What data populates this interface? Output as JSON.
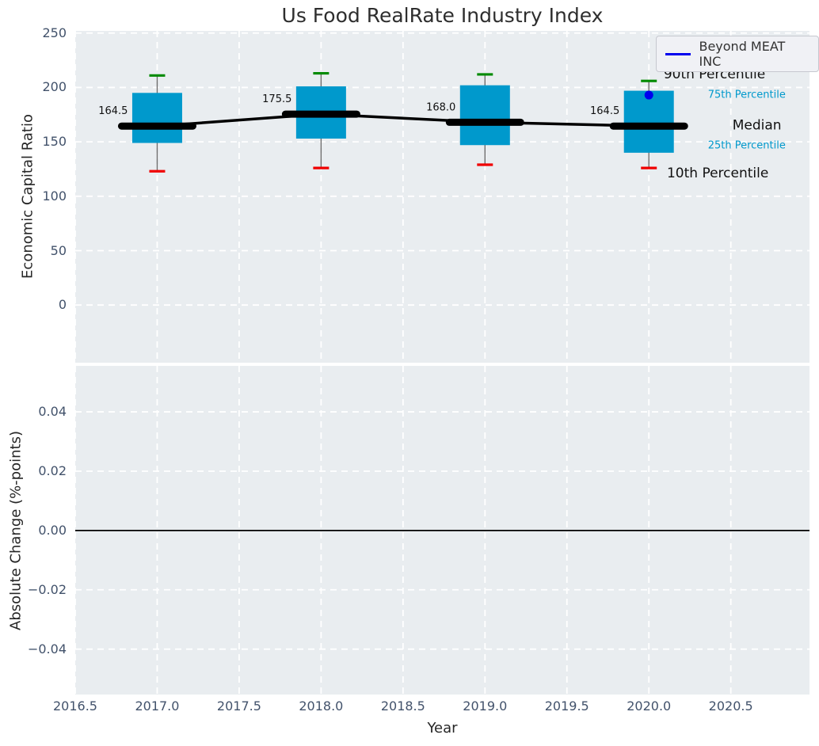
{
  "colors": {
    "axes_bg": "#e9edf0",
    "grid": "#ffffff",
    "box": "#0099cc",
    "p90_cap": "#008a00",
    "p10_cap": "#f00000",
    "median": "#000000",
    "whisker": "#6e6e6e",
    "series_blue": "#0000ee",
    "tick_label": "#42526b",
    "annotation_small": "#0099cc",
    "annotation_large": "#111111"
  },
  "chart_data": [
    {
      "type": "boxplot",
      "title": "Us Food RealRate Industry Index",
      "ylabel": "Economic Capital Ratio",
      "xlim": [
        2016.5,
        2020.98
      ],
      "ylim": [
        -53,
        252
      ],
      "grid": true,
      "show_xtick_labels": false,
      "xticks": {
        "values": [
          2016.5,
          2017.0,
          2017.5,
          2018.0,
          2018.5,
          2019.0,
          2019.5,
          2020.0,
          2020.5
        ],
        "labels": [
          "2016.5",
          "2017.0",
          "2017.5",
          "2018.0",
          "2018.5",
          "2019.0",
          "2019.5",
          "2020.0",
          "2020.5"
        ]
      },
      "yticks": {
        "values": [
          0,
          50,
          100,
          150,
          200,
          250
        ],
        "labels": [
          "0",
          "50",
          "100",
          "150",
          "200",
          "250"
        ]
      },
      "boxes": [
        {
          "x": 2017,
          "p10": 123,
          "q1": 149,
          "median": 164.5,
          "q3": 195,
          "p90": 211,
          "label": "164.5"
        },
        {
          "x": 2018,
          "p10": 126,
          "q1": 153,
          "median": 175.5,
          "q3": 201,
          "p90": 213,
          "label": "175.5"
        },
        {
          "x": 2019,
          "p10": 129,
          "q1": 147,
          "median": 168.0,
          "q3": 202,
          "p90": 212,
          "label": "168.0"
        },
        {
          "x": 2020,
          "p10": 126,
          "q1": 140,
          "median": 164.5,
          "q3": 197,
          "p90": 206,
          "label": "164.5"
        }
      ],
      "series": [
        {
          "name": "Beyond MEAT INC",
          "color": "#0000ee",
          "points": [
            [
              2020,
              193
            ]
          ]
        }
      ],
      "legend": {
        "label": "Beyond MEAT INC",
        "line_color": "#0000ee",
        "position": "upper right"
      },
      "annotations": [
        {
          "text": "90th Percentile",
          "x": 2020.09,
          "y": 212,
          "size": "lg",
          "color": "#111111"
        },
        {
          "text": "75th Percentile",
          "x": 2020.36,
          "y": 193,
          "size": "sm",
          "color": "#0099cc"
        },
        {
          "text": "Median",
          "x": 2020.51,
          "y": 165,
          "size": "lg",
          "color": "#111111"
        },
        {
          "text": "25th Percentile",
          "x": 2020.36,
          "y": 146.5,
          "size": "sm",
          "color": "#0099cc"
        },
        {
          "text": "10th Percentile",
          "x": 2020.11,
          "y": 121,
          "size": "lg",
          "color": "#111111"
        }
      ]
    },
    {
      "type": "line",
      "ylabel": "Absolute Change (%-points)",
      "xlabel": "Year",
      "xlim": [
        2016.5,
        2020.98
      ],
      "ylim": [
        -0.0553,
        0.0555
      ],
      "grid": true,
      "show_xtick_labels": true,
      "xticks": {
        "values": [
          2016.5,
          2017.0,
          2017.5,
          2018.0,
          2018.5,
          2019.0,
          2019.5,
          2020.0,
          2020.5
        ],
        "labels": [
          "2016.5",
          "2017.0",
          "2017.5",
          "2018.0",
          "2018.5",
          "2019.0",
          "2019.5",
          "2020.0",
          "2020.5"
        ]
      },
      "yticks": {
        "values": [
          0.04,
          0.02,
          0.0,
          -0.02,
          -0.04
        ],
        "labels": [
          "0.04",
          "0.02",
          "0.00",
          "−0.02",
          "−0.04"
        ]
      },
      "zero_line": {
        "y": 0,
        "color": "#000000"
      }
    }
  ]
}
